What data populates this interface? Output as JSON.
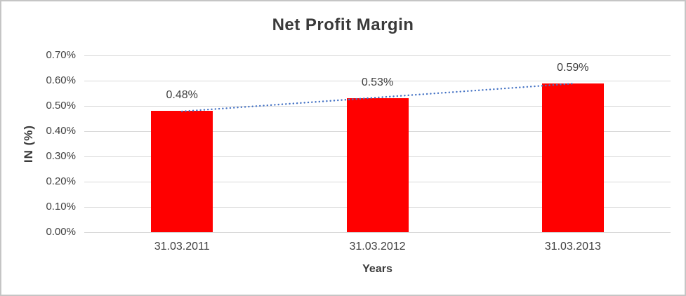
{
  "chart_data": {
    "type": "bar",
    "title": "Net Profit Margin",
    "xlabel": "Years",
    "ylabel": "IN (%)",
    "categories": [
      "31.03.2011",
      "31.03.2012",
      "31.03.2013"
    ],
    "values": [
      0.48,
      0.53,
      0.59
    ],
    "value_labels": [
      "0.48%",
      "0.53%",
      "0.59%"
    ],
    "ylim": [
      0,
      0.7
    ],
    "yticks": [
      0.0,
      0.1,
      0.2,
      0.3,
      0.4,
      0.5,
      0.6,
      0.7
    ],
    "ytick_labels": [
      "0.00%",
      "0.10%",
      "0.20%",
      "0.30%",
      "0.40%",
      "0.50%",
      "0.60%",
      "0.70%"
    ],
    "grid": true,
    "legend": "none",
    "trendline": {
      "type": "linear",
      "style": "dotted"
    },
    "colors": {
      "bar": "#ff0000",
      "trendline": "#4472c4",
      "gridline": "#d9d9d9",
      "text": "#3f3f3f",
      "frame_border": "#c5c5c5"
    }
  }
}
